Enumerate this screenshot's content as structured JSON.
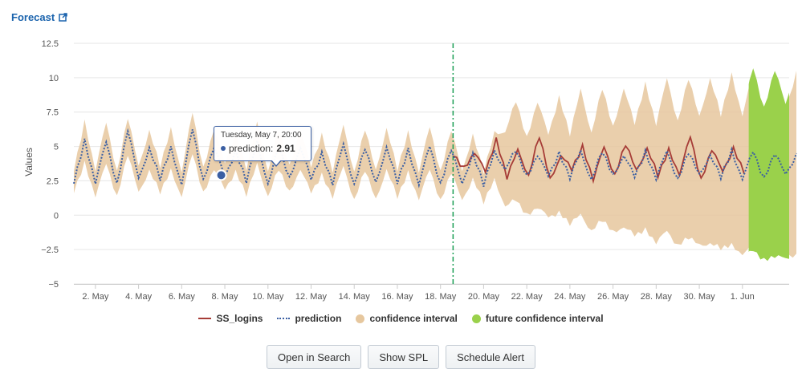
{
  "panel": {
    "title": "Forecast",
    "external_icon": "external-link-icon"
  },
  "colors": {
    "series_line": "#a63c37",
    "prediction_line": "#3b5fa3",
    "confidence": "#e6c79e",
    "future_confidence": "#9ad14b",
    "divider": "#1a9e54",
    "grid": "#e6e6e6",
    "axis_text": "#555555"
  },
  "chart_data": {
    "type": "line",
    "xlabel": "",
    "ylabel": "Values",
    "ylim": [
      -5,
      12.5
    ],
    "yticks": [
      12.5,
      10,
      7.5,
      5,
      2.5,
      0,
      -2.5,
      -5
    ],
    "ytick_labels": [
      "12.5",
      "10",
      "7.5",
      "5",
      "2.5",
      "0",
      "−2.5",
      "−5"
    ],
    "xlim": [
      "2024-05-01T00:00",
      "2024-06-03T04:00"
    ],
    "xticks": [
      "2024-05-02",
      "2024-05-04",
      "2024-05-06",
      "2024-05-08",
      "2024-05-10",
      "2024-05-12",
      "2024-05-14",
      "2024-05-16",
      "2024-05-18",
      "2024-05-20",
      "2024-05-22",
      "2024-05-24",
      "2024-05-26",
      "2024-05-28",
      "2024-05-30",
      "2024-06-01"
    ],
    "xtick_labels": [
      "2. May",
      "4. May",
      "6. May",
      "8. May",
      "10. May",
      "12. May",
      "14. May",
      "16. May",
      "18. May",
      "20. May",
      "22. May",
      "24. May",
      "26. May",
      "28. May",
      "30. May",
      "1. Jun"
    ],
    "grid": true,
    "legend_position": "bottom",
    "forecast_start": "2024-05-18T14:00",
    "future_start": "2024-06-01T07:00",
    "series": [
      {
        "name": "SS_logins",
        "style": "solid",
        "sample_interval_hours": 12,
        "start": "2024-05-18T14:00",
        "values": [
          4.3,
          3.4,
          4.7,
          3.0,
          5.6,
          2.8,
          4.6,
          3.0,
          5.7,
          2.5,
          4.5,
          3.2,
          5.0,
          2.7,
          4.8,
          3.0,
          5.2,
          3.1,
          5.0,
          2.8,
          4.7,
          3.1,
          5.6,
          2.6,
          4.9,
          3.0,
          5.0,
          3.0
        ]
      },
      {
        "name": "prediction",
        "style": "dotted",
        "sample_interval_hours": 12,
        "start": "2024-05-01T00:00",
        "values": [
          2.3,
          5.4,
          2.5,
          5.2,
          2.3,
          6.3,
          2.5,
          5.0,
          2.6,
          4.8,
          2.4,
          6.2,
          2.5,
          5.1,
          2.6,
          4.8,
          2.5,
          5.2,
          2.4,
          4.9,
          2.6,
          5.1,
          2.5,
          4.5,
          2.4,
          5.0,
          2.3,
          4.9,
          2.2,
          5.1,
          2.3,
          4.7,
          2.4,
          4.9,
          2.3,
          4.9,
          2.1,
          4.6,
          2.2,
          4.5,
          3.5,
          4.6,
          2.8,
          4.5,
          2.7,
          4.6,
          2.8,
          4.5,
          2.7,
          4.6,
          2.8,
          4.5,
          2.7,
          4.6,
          2.8,
          4.5,
          2.7,
          4.6,
          2.8,
          4.5,
          2.7,
          4.6,
          2.8,
          4.5,
          2.7,
          4.6,
          2.8,
          4.5
        ]
      },
      {
        "name": "confidence interval",
        "style": "area",
        "sample_interval_hours": 12,
        "start": "2024-05-01T00:00",
        "lower": [
          1.6,
          3.8,
          1.5,
          3.6,
          1.4,
          4.5,
          1.5,
          3.4,
          1.6,
          3.2,
          1.5,
          4.4,
          1.6,
          3.5,
          1.7,
          3.3,
          1.5,
          3.6,
          1.5,
          3.3,
          1.6,
          3.5,
          1.5,
          3.0,
          1.4,
          3.4,
          1.2,
          3.3,
          1.0,
          3.5,
          1.2,
          3.1,
          1.3,
          3.2,
          1.1,
          3.2,
          0.9,
          2.8,
          0.9,
          2.5,
          0.8,
          1.0,
          0.0,
          0.7,
          -0.3,
          0.3,
          -0.6,
          -0.1,
          -1.0,
          -0.4,
          -1.3,
          -0.7,
          -1.6,
          -1.0,
          -1.9,
          -1.3,
          -2.1,
          -1.6,
          -2.3,
          -1.9,
          -2.5,
          -2.2,
          -2.7,
          -2.4,
          -2.9,
          -2.6,
          -3.0,
          -2.8
        ],
        "upper": [
          3.2,
          6.8,
          3.4,
          6.6,
          3.2,
          7.2,
          3.4,
          6.3,
          3.5,
          6.2,
          3.3,
          7.4,
          3.4,
          6.4,
          3.6,
          6.1,
          3.4,
          6.6,
          3.3,
          6.2,
          3.5,
          6.4,
          3.4,
          5.9,
          3.3,
          6.4,
          3.2,
          6.3,
          3.1,
          6.5,
          3.2,
          6.0,
          3.3,
          6.3,
          3.2,
          6.3,
          3.0,
          6.0,
          3.1,
          5.9,
          6.2,
          8.2,
          5.6,
          8.4,
          5.7,
          8.7,
          5.9,
          9.0,
          6.1,
          9.2,
          6.3,
          9.4,
          6.5,
          9.6,
          6.7,
          9.8,
          6.9,
          10.0,
          7.0,
          10.1,
          7.2,
          10.2,
          7.4,
          10.3,
          7.5,
          10.4,
          7.6,
          10.5
        ]
      },
      {
        "name": "future confidence interval",
        "style": "area",
        "range": [
          "2024-06-01T07:00",
          "2024-06-03T04:00"
        ]
      }
    ],
    "tooltip": {
      "date": "Tuesday, May 7, 20:00",
      "series": "prediction",
      "value_label": "prediction:",
      "value": "2.91",
      "x": "2024-05-07T20:00",
      "y": 2.91
    }
  },
  "buttons": {
    "open_in_search": "Open in Search",
    "show_spl": "Show SPL",
    "schedule_alert": "Schedule Alert"
  }
}
